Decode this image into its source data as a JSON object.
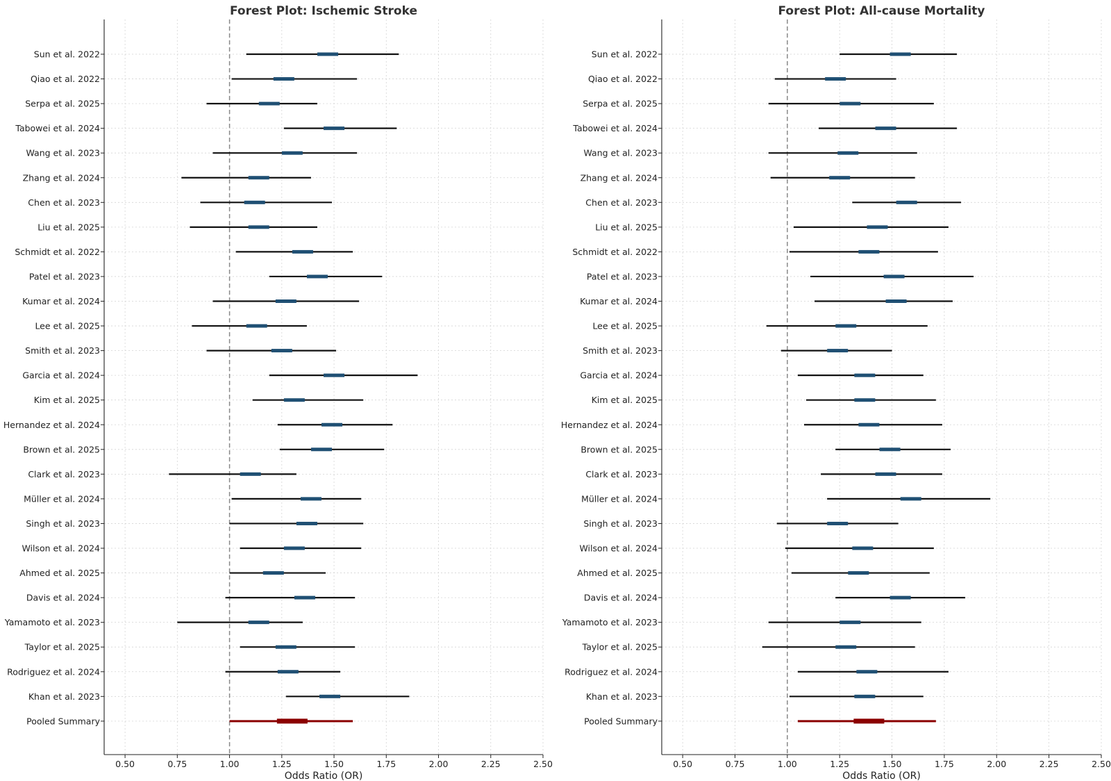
{
  "colors": {
    "ci_line": "#111111",
    "box": "#1f4f73",
    "pooled": "#8b0000",
    "reference": "#888888"
  },
  "chart_data": [
    {
      "type": "forest",
      "title": "Forest Plot: Ischemic Stroke",
      "xlabel": "Odds Ratio (OR)",
      "ylabel": "",
      "xlim": [
        0.4,
        2.5
      ],
      "xticks": [
        "0.50",
        "0.75",
        "1.00",
        "1.25",
        "1.50",
        "1.75",
        "2.00",
        "2.25",
        "2.50"
      ],
      "reference_line": 1.0,
      "grid": true,
      "studies": [
        {
          "name": "Sun et al. 2022",
          "lower": 1.08,
          "upper": 1.81,
          "or": 1.47
        },
        {
          "name": "Qiao et al. 2022",
          "lower": 1.01,
          "upper": 1.61,
          "or": 1.26
        },
        {
          "name": "Serpa et al. 2025",
          "lower": 0.89,
          "upper": 1.42,
          "or": 1.19
        },
        {
          "name": "Tabowei et al. 2024",
          "lower": 1.26,
          "upper": 1.8,
          "or": 1.5
        },
        {
          "name": "Wang et al. 2023",
          "lower": 0.92,
          "upper": 1.61,
          "or": 1.3
        },
        {
          "name": "Zhang et al. 2024",
          "lower": 0.77,
          "upper": 1.39,
          "or": 1.14
        },
        {
          "name": "Chen et al. 2023",
          "lower": 0.86,
          "upper": 1.49,
          "or": 1.12
        },
        {
          "name": "Liu et al. 2025",
          "lower": 0.81,
          "upper": 1.42,
          "or": 1.14
        },
        {
          "name": "Schmidt et al. 2022",
          "lower": 1.03,
          "upper": 1.59,
          "or": 1.35
        },
        {
          "name": "Patel et al. 2023",
          "lower": 1.19,
          "upper": 1.73,
          "or": 1.42
        },
        {
          "name": "Kumar et al. 2024",
          "lower": 0.92,
          "upper": 1.62,
          "or": 1.27
        },
        {
          "name": "Lee et al. 2025",
          "lower": 0.82,
          "upper": 1.37,
          "or": 1.13
        },
        {
          "name": "Smith et al. 2023",
          "lower": 0.89,
          "upper": 1.51,
          "or": 1.25
        },
        {
          "name": "Garcia et al. 2024",
          "lower": 1.19,
          "upper": 1.9,
          "or": 1.5
        },
        {
          "name": "Kim et al. 2025",
          "lower": 1.11,
          "upper": 1.64,
          "or": 1.31
        },
        {
          "name": "Hernandez et al. 2024",
          "lower": 1.23,
          "upper": 1.78,
          "or": 1.49
        },
        {
          "name": "Brown et al. 2025",
          "lower": 1.24,
          "upper": 1.74,
          "or": 1.44
        },
        {
          "name": "Clark et al. 2023",
          "lower": 0.71,
          "upper": 1.32,
          "or": 1.1
        },
        {
          "name": "Müller et al. 2024",
          "lower": 1.01,
          "upper": 1.63,
          "or": 1.39
        },
        {
          "name": "Singh et al. 2023",
          "lower": 1.0,
          "upper": 1.64,
          "or": 1.37
        },
        {
          "name": "Wilson et al. 2024",
          "lower": 1.05,
          "upper": 1.63,
          "or": 1.31
        },
        {
          "name": "Ahmed et al. 2025",
          "lower": 1.0,
          "upper": 1.46,
          "or": 1.21
        },
        {
          "name": "Davis et al. 2024",
          "lower": 0.98,
          "upper": 1.6,
          "or": 1.36
        },
        {
          "name": "Yamamoto et al. 2023",
          "lower": 0.75,
          "upper": 1.35,
          "or": 1.14
        },
        {
          "name": "Taylor et al. 2025",
          "lower": 1.05,
          "upper": 1.6,
          "or": 1.27
        },
        {
          "name": "Rodriguez et al. 2024",
          "lower": 0.98,
          "upper": 1.53,
          "or": 1.28
        },
        {
          "name": "Khan et al. 2023",
          "lower": 1.27,
          "upper": 1.86,
          "or": 1.48
        }
      ],
      "pooled": {
        "name": "Pooled Summary",
        "lower": 1.0,
        "upper": 1.59,
        "or": 1.3
      }
    },
    {
      "type": "forest",
      "title": "Forest Plot: All-cause Mortality",
      "xlabel": "Odds Ratio (OR)",
      "ylabel": "",
      "xlim": [
        0.4,
        2.5
      ],
      "xticks": [
        "0.50",
        "0.75",
        "1.00",
        "1.25",
        "1.50",
        "1.75",
        "2.00",
        "2.25",
        "2.50"
      ],
      "reference_line": 1.0,
      "grid": true,
      "studies": [
        {
          "name": "Sun et al. 2022",
          "lower": 1.25,
          "upper": 1.81,
          "or": 1.54
        },
        {
          "name": "Qiao et al. 2022",
          "lower": 0.94,
          "upper": 1.52,
          "or": 1.23
        },
        {
          "name": "Serpa et al. 2025",
          "lower": 0.91,
          "upper": 1.7,
          "or": 1.3
        },
        {
          "name": "Tabowei et al. 2024",
          "lower": 1.15,
          "upper": 1.81,
          "or": 1.47
        },
        {
          "name": "Wang et al. 2023",
          "lower": 0.91,
          "upper": 1.62,
          "or": 1.29
        },
        {
          "name": "Zhang et al. 2024",
          "lower": 0.92,
          "upper": 1.61,
          "or": 1.25
        },
        {
          "name": "Chen et al. 2023",
          "lower": 1.31,
          "upper": 1.83,
          "or": 1.57
        },
        {
          "name": "Liu et al. 2025",
          "lower": 1.03,
          "upper": 1.77,
          "or": 1.43
        },
        {
          "name": "Schmidt et al. 2022",
          "lower": 1.01,
          "upper": 1.72,
          "or": 1.39
        },
        {
          "name": "Patel et al. 2023",
          "lower": 1.11,
          "upper": 1.89,
          "or": 1.51
        },
        {
          "name": "Kumar et al. 2024",
          "lower": 1.13,
          "upper": 1.79,
          "or": 1.52
        },
        {
          "name": "Lee et al. 2025",
          "lower": 0.9,
          "upper": 1.67,
          "or": 1.28
        },
        {
          "name": "Smith et al. 2023",
          "lower": 0.97,
          "upper": 1.5,
          "or": 1.24
        },
        {
          "name": "Garcia et al. 2024",
          "lower": 1.05,
          "upper": 1.65,
          "or": 1.37
        },
        {
          "name": "Kim et al. 2025",
          "lower": 1.09,
          "upper": 1.71,
          "or": 1.37
        },
        {
          "name": "Hernandez et al. 2024",
          "lower": 1.08,
          "upper": 1.74,
          "or": 1.39
        },
        {
          "name": "Brown et al. 2025",
          "lower": 1.23,
          "upper": 1.78,
          "or": 1.49
        },
        {
          "name": "Clark et al. 2023",
          "lower": 1.16,
          "upper": 1.74,
          "or": 1.47
        },
        {
          "name": "Müller et al. 2024",
          "lower": 1.19,
          "upper": 1.97,
          "or": 1.59
        },
        {
          "name": "Singh et al. 2023",
          "lower": 0.95,
          "upper": 1.53,
          "or": 1.24
        },
        {
          "name": "Wilson et al. 2024",
          "lower": 0.99,
          "upper": 1.7,
          "or": 1.36
        },
        {
          "name": "Ahmed et al. 2025",
          "lower": 1.02,
          "upper": 1.68,
          "or": 1.34
        },
        {
          "name": "Davis et al. 2024",
          "lower": 1.23,
          "upper": 1.85,
          "or": 1.54
        },
        {
          "name": "Yamamoto et al. 2023",
          "lower": 0.91,
          "upper": 1.64,
          "or": 1.3
        },
        {
          "name": "Taylor et al. 2025",
          "lower": 0.88,
          "upper": 1.61,
          "or": 1.28
        },
        {
          "name": "Rodriguez et al. 2024",
          "lower": 1.05,
          "upper": 1.77,
          "or": 1.38
        },
        {
          "name": "Khan et al. 2023",
          "lower": 1.01,
          "upper": 1.65,
          "or": 1.37
        }
      ],
      "pooled": {
        "name": "Pooled Summary",
        "lower": 1.05,
        "upper": 1.71,
        "or": 1.39
      }
    }
  ]
}
